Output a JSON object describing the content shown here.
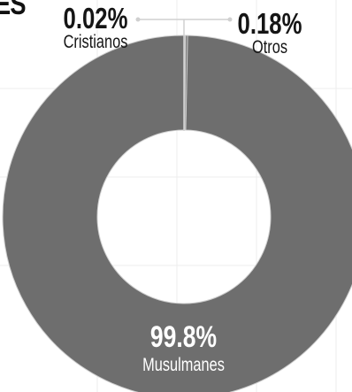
{
  "cut_title": "ES",
  "chart_data": {
    "type": "pie",
    "donut": true,
    "slices": [
      {
        "label": "Musulmanes",
        "value": 99.8,
        "display": "99.8%"
      },
      {
        "label": "Otros",
        "value": 0.18,
        "display": "0.18%"
      },
      {
        "label": "Cristianos",
        "value": 0.02,
        "display": "0.02%"
      }
    ],
    "colors": {
      "slice": "#6e6e6e",
      "separator": "#cfcfcf",
      "leader": "#d0d0d0",
      "grid": "#eeeeee"
    },
    "grid": true,
    "legend": "none"
  }
}
